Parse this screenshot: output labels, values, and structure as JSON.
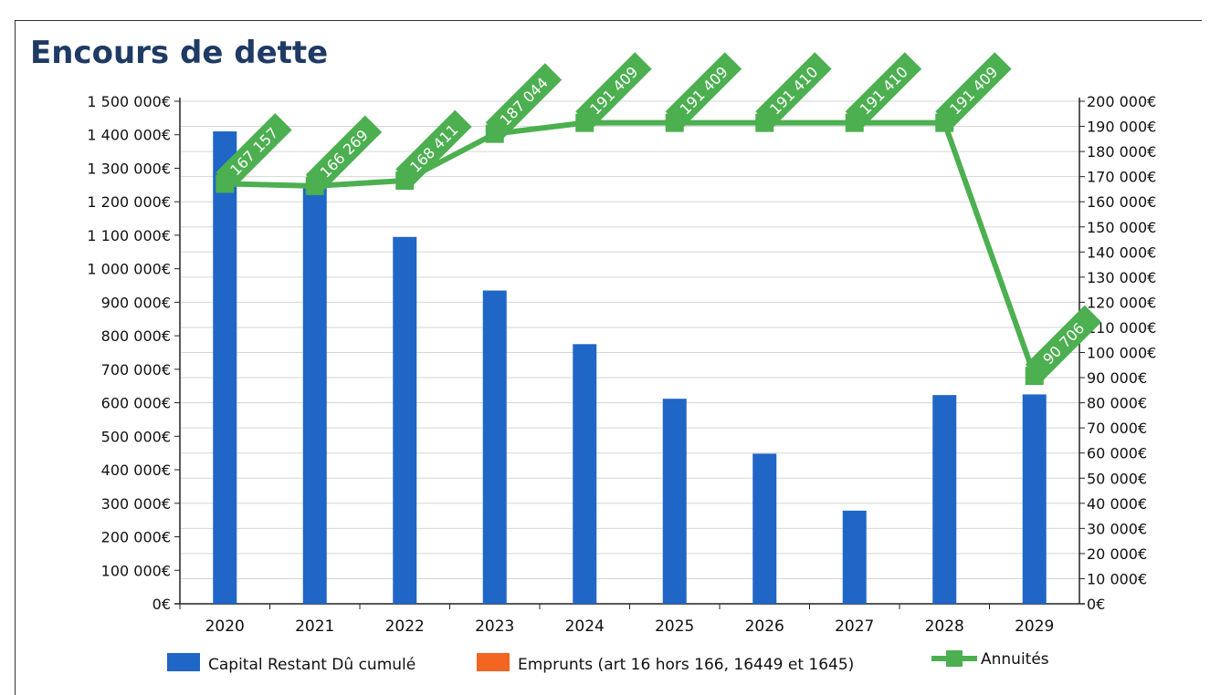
{
  "chart_data": {
    "type": "bar+line",
    "title": "Encours de dette",
    "categories": [
      "2020",
      "2021",
      "2022",
      "2023",
      "2024",
      "2025",
      "2026",
      "2027",
      "2028",
      "2029"
    ],
    "series": [
      {
        "name": "Capital Restant Dû cumulé",
        "type": "bar",
        "axis": "left",
        "color": "#1f66c7",
        "values": [
          1410000,
          1245000,
          1095000,
          935000,
          775000,
          612000,
          448000,
          278000,
          623000,
          625000
        ]
      },
      {
        "name": "Emprunts (art 16 hors 166, 16449 et 1645)",
        "type": "bar",
        "axis": "left",
        "color": "#f26522",
        "values": [
          0,
          0,
          0,
          0,
          0,
          0,
          0,
          0,
          0,
          0
        ]
      },
      {
        "name": "Annuités",
        "type": "line",
        "axis": "right",
        "color": "#4caf50",
        "values": [
          167157,
          166269,
          168411,
          187044,
          191409,
          191409,
          191410,
          191410,
          191409,
          90706
        ],
        "labels": [
          "167 157",
          "166 269",
          "168 411",
          "187 044",
          "191 409",
          "191 409",
          "191 410",
          "191 410",
          "191 409",
          "90 706"
        ]
      }
    ],
    "left_axis": {
      "min": 0,
      "max": 1500000,
      "step": 100000,
      "ticks": [
        "0€",
        "100 000€",
        "200 000€",
        "300 000€",
        "400 000€",
        "500 000€",
        "600 000€",
        "700 000€",
        "800 000€",
        "900 000€",
        "1 000 000€",
        "1 100 000€",
        "1 200 000€",
        "1 300 000€",
        "1 400 000€",
        "1 500 000€"
      ]
    },
    "right_axis": {
      "min": 0,
      "max": 200000,
      "step": 10000,
      "ticks": [
        "0€",
        "10 000€",
        "20 000€",
        "30 000€",
        "40 000€",
        "50 000€",
        "60 000€",
        "70 000€",
        "80 000€",
        "90 000€",
        "100 000€",
        "110 000€",
        "120 000€",
        "130 000€",
        "140 000€",
        "150 000€",
        "160 000€",
        "170 000€",
        "180 000€",
        "190 000€",
        "200 000€"
      ]
    },
    "grid": true,
    "legend": "bottom"
  }
}
